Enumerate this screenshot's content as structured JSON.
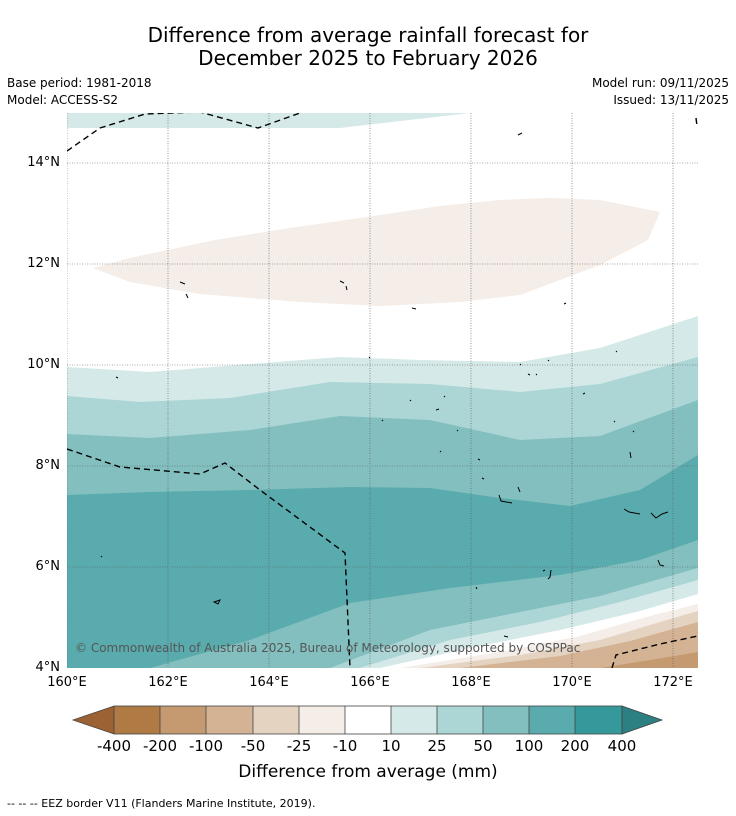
{
  "title_line1": "Difference from average rainfall forecast for",
  "title_line2": "December 2025 to February 2026",
  "base_period": "Base period: 1981-2018",
  "model": "Model: ACCESS-S2",
  "model_run": "Model run: 09/11/2025",
  "issued": "Issued: 13/11/2025",
  "copyright": "© Commonwealth of Australia 2025, Bureau of Meteorology, supported by COSPPac",
  "lat_labels": [
    "14°N",
    "12°N",
    "10°N",
    "8°N",
    "6°N",
    "4°N"
  ],
  "lon_labels": [
    "160°E",
    "162°E",
    "164°E",
    "166°E",
    "168°E",
    "170°E",
    "172°E"
  ],
  "colorbar": {
    "title": "Difference from average (mm)",
    "ticks": [
      "-400",
      "-200",
      "-100",
      "-50",
      "-25",
      "-10",
      "10",
      "25",
      "50",
      "100",
      "200",
      "400"
    ],
    "colors": {
      "lt_-400": "#9c6233",
      "-400_-200": "#b07a45",
      "-200_-100": "#c59a71",
      "-100_-50": "#d4b394",
      "-50_-25": "#e5d3c2",
      "-25_-10": "#f4ede8",
      "-10_10": "#ffffff",
      "10_25": "#d5e9e8",
      "25_50": "#acd5d5",
      "50_100": "#83bfbf",
      "100_200": "#5aabad",
      "200_400": "#35999b",
      "gt_400": "#2d8082"
    }
  },
  "footer": "--  --  -- EEZ border V11 (Flanders Marine Institute, 2019)."
}
